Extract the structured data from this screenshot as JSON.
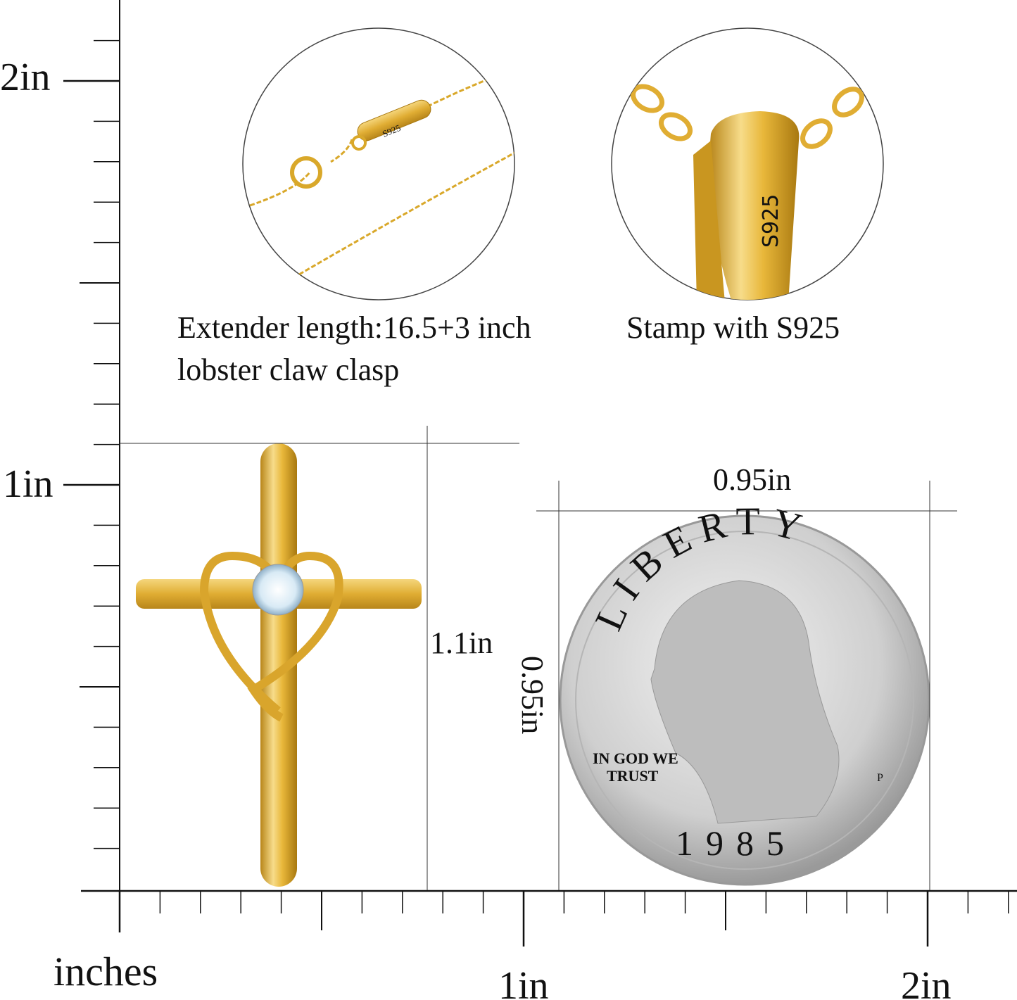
{
  "ruler": {
    "unit_label": "inches",
    "vertical_labels": [
      "2in",
      "1in"
    ],
    "horizontal_labels": [
      "1in",
      "2in"
    ]
  },
  "chain_detail": {
    "stamp": "S925",
    "caption_line1": "Extender length:16.5+3 inch",
    "caption_line2": "lobster claw clasp"
  },
  "bail_detail": {
    "stamp": "S925",
    "caption": "Stamp with S925"
  },
  "pendant": {
    "height_label": "1.1in"
  },
  "coin": {
    "width_label": "0.95in",
    "height_label": "0.95in",
    "inscription_top": "LIBERTY",
    "motto_line1": "IN GOD WE",
    "motto_line2": "TRUST",
    "year": "1985",
    "mint_mark": "P"
  },
  "colors": {
    "gold": "#e8b73a",
    "gold_dark": "#b8861a",
    "silver": "#cfcfcf"
  }
}
